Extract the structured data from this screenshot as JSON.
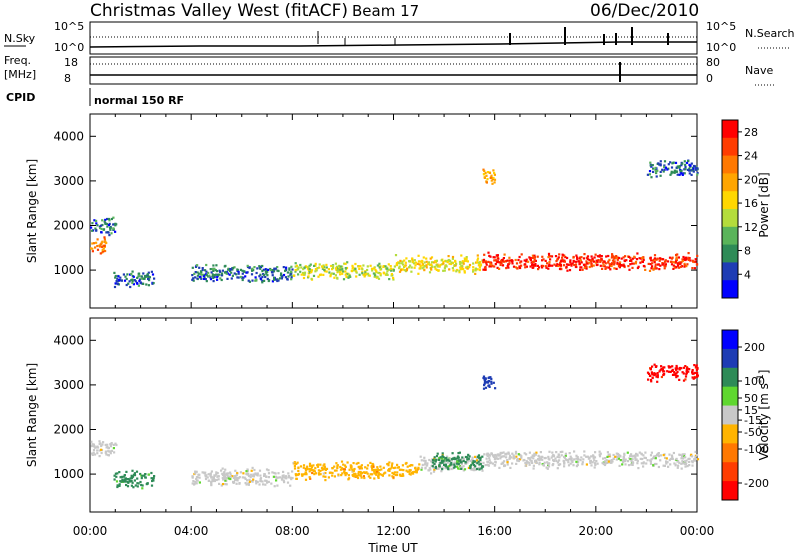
{
  "header": {
    "title": "Christmas Valley West (fitACF)",
    "beam": "Beam 17",
    "date": "06/Dec/2010"
  },
  "side_labels": {
    "nsky": "N.Sky",
    "nsearch": "N.Search",
    "freq": "Freq.",
    "freq_unit": "[MHz]",
    "nave": "Nave",
    "cpid": "CPID",
    "top_ticks_left": [
      "10^5",
      "10^0"
    ],
    "top_ticks_right": [
      "10^5",
      "10^0"
    ],
    "freq_ticks": [
      "18",
      "8"
    ],
    "nave_ticks": [
      "80",
      "0"
    ]
  },
  "cpid_text": "normal 150 RF",
  "colors": {
    "power_scale": [
      "#0000ff",
      "#1e3cb4",
      "#2e8b57",
      "#5ab45a",
      "#b4dc3c",
      "#ffd700",
      "#ffa500",
      "#ff7800",
      "#ff3c00",
      "#ff0000"
    ],
    "velocity_scale": [
      "#0000ff",
      "#1e3cb4",
      "#2e8b57",
      "#5fd72f",
      "#c8c8c8",
      "#ffb400",
      "#ff7800",
      "#ff3c00",
      "#ff0000"
    ]
  },
  "chart_data": [
    {
      "type": "heatmap",
      "name": "power",
      "xlabel": "",
      "ylabel": "Slant Range [km]",
      "xlim": [
        "00:00",
        "24:00"
      ],
      "ylim": [
        150,
        4500
      ],
      "yticks": [
        1000,
        2000,
        3000,
        4000
      ],
      "xticks": [
        "00:00",
        "04:00",
        "08:00",
        "12:00",
        "16:00",
        "20:00",
        "00:00"
      ],
      "colorbar": {
        "label": "Power [dB]",
        "ticks": [
          4,
          8,
          12,
          16,
          20,
          24,
          28
        ],
        "range": [
          0,
          30
        ]
      },
      "features": [
        {
          "t_start": 0.0,
          "t_end": 0.6,
          "range_km": 1600,
          "value_db": 22
        },
        {
          "t_start": 0.0,
          "t_end": 1.0,
          "range_km": 2000,
          "value_db": 6
        },
        {
          "t_start": 0.9,
          "t_end": 2.5,
          "range_km": 800,
          "value_db": 6
        },
        {
          "t_start": 4.0,
          "t_end": 8.0,
          "range_km": 950,
          "value_db": 6
        },
        {
          "t_start": 8.0,
          "t_end": 12.0,
          "range_km": 1000,
          "value_db": 14
        },
        {
          "t_start": 12.0,
          "t_end": 15.5,
          "range_km": 1150,
          "value_db": 16
        },
        {
          "t_start": 15.5,
          "t_end": 24.0,
          "range_km": 1200,
          "value_db": 27
        },
        {
          "t_start": 15.5,
          "t_end": 16.0,
          "range_km": 3100,
          "value_db": 20
        },
        {
          "t_start": 22.0,
          "t_end": 24.0,
          "range_km": 3300,
          "value_db": 6
        }
      ]
    },
    {
      "type": "heatmap",
      "name": "velocity",
      "xlabel": "Time UT",
      "ylabel": "Slant Range [km]",
      "xlim": [
        "00:00",
        "24:00"
      ],
      "ylim": [
        150,
        4500
      ],
      "yticks": [
        1000,
        2000,
        3000,
        4000
      ],
      "xticks": [
        "00:00",
        "04:00",
        "08:00",
        "12:00",
        "16:00",
        "20:00",
        "00:00"
      ],
      "colorbar": {
        "label": "Velocity [m s^-1]",
        "ticks": [
          200,
          100,
          50,
          15,
          -15,
          -50,
          -100,
          -200
        ],
        "range": [
          -250,
          250
        ]
      },
      "features": [
        {
          "t_start": 0.0,
          "t_end": 1.0,
          "range_km": 1600,
          "value_ms": 0
        },
        {
          "t_start": 0.9,
          "t_end": 2.5,
          "range_km": 900,
          "value_ms": 60
        },
        {
          "t_start": 4.0,
          "t_end": 8.0,
          "range_km": 950,
          "value_ms": 0
        },
        {
          "t_start": 8.0,
          "t_end": 13.0,
          "range_km": 1100,
          "value_ms": -40
        },
        {
          "t_start": 13.0,
          "t_end": 15.5,
          "range_km": 1250,
          "value_ms": 0
        },
        {
          "t_start": 13.5,
          "t_end": 15.5,
          "range_km": 1300,
          "value_ms": 60
        },
        {
          "t_start": 15.5,
          "t_end": 24.0,
          "range_km": 1350,
          "value_ms": 0
        },
        {
          "t_start": 15.5,
          "t_end": 16.0,
          "range_km": 3100,
          "value_ms": 150
        },
        {
          "t_start": 22.0,
          "t_end": 24.0,
          "range_km": 3300,
          "value_ms": -220
        }
      ]
    }
  ]
}
